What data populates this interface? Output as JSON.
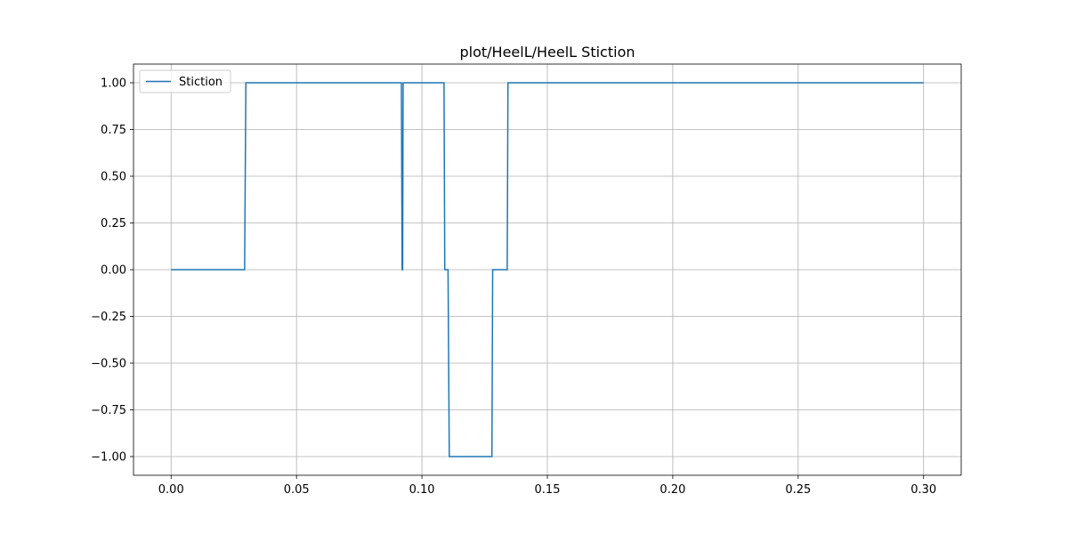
{
  "chart_data": {
    "type": "line",
    "title": "plot/HeelL/HeelL Stiction",
    "xlabel": "",
    "ylabel": "",
    "xlim": [
      -0.015,
      0.315
    ],
    "ylim": [
      -1.1,
      1.1
    ],
    "xticks": [
      0.0,
      0.05,
      0.1,
      0.15,
      0.2,
      0.25,
      0.3
    ],
    "xtick_labels": [
      "0.00",
      "0.05",
      "0.10",
      "0.15",
      "0.20",
      "0.25",
      "0.30"
    ],
    "yticks": [
      1.0,
      0.75,
      0.5,
      0.25,
      0.0,
      -0.25,
      -0.5,
      -0.75,
      -1.0
    ],
    "ytick_labels": [
      "1.00",
      "0.75",
      "0.50",
      "0.25",
      "0.00",
      "−0.25",
      "−0.50",
      "−0.75",
      "−1.00"
    ],
    "grid": true,
    "legend_position": "top-left",
    "series": [
      {
        "name": "Stiction",
        "color": "#1f77b4",
        "x": [
          0.0,
          0.0293,
          0.0298,
          0.0918,
          0.0921,
          0.0923,
          0.0925,
          0.1088,
          0.1091,
          0.1104,
          0.1109,
          0.1279,
          0.1282,
          0.134,
          0.1343,
          0.3
        ],
        "y": [
          0,
          0,
          1,
          1,
          0,
          0,
          1,
          1,
          0,
          0,
          -1,
          -1,
          0,
          0,
          1,
          1
        ]
      }
    ]
  }
}
